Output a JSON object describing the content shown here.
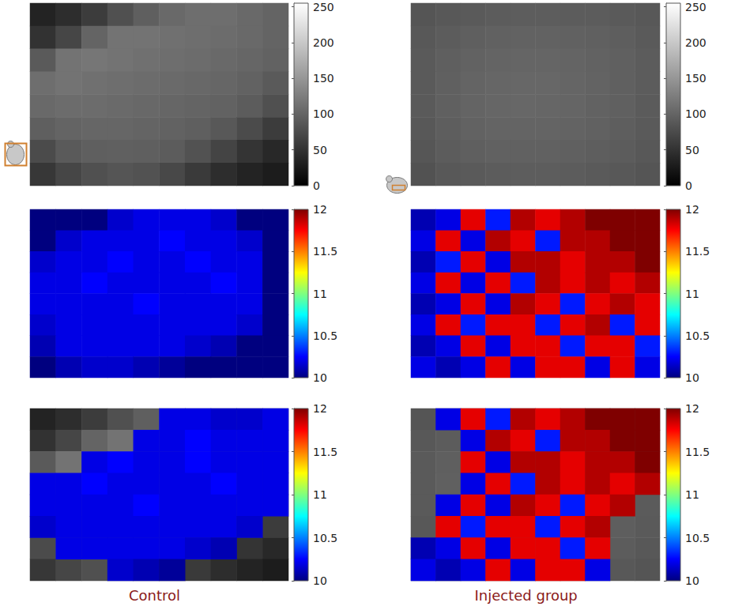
{
  "captions": [
    "Control",
    "Injected group"
  ],
  "chart_data": [
    {
      "type": "heatmap",
      "tick_labels": false,
      "cells": [
        [
          35,
          45,
          60,
          80,
          95,
          105,
          110,
          110,
          105,
          100
        ],
        [
          50,
          70,
          100,
          115,
          115,
          112,
          110,
          108,
          105,
          100
        ],
        [
          90,
          115,
          118,
          115,
          112,
          110,
          108,
          105,
          102,
          98
        ],
        [
          110,
          115,
          112,
          110,
          108,
          106,
          104,
          102,
          98,
          90
        ],
        [
          105,
          108,
          108,
          106,
          104,
          102,
          100,
          98,
          92,
          80
        ],
        [
          95,
          100,
          102,
          102,
          100,
          98,
          95,
          88,
          75,
          60
        ],
        [
          75,
          90,
          95,
          96,
          95,
          92,
          82,
          68,
          52,
          40
        ],
        [
          55,
          70,
          80,
          85,
          82,
          72,
          58,
          45,
          35,
          28
        ]
      ],
      "colorbar": {
        "range": [
          0,
          255
        ],
        "ticks": [
          0,
          50,
          100,
          150,
          200,
          250
        ],
        "colors": [
          "#000000",
          "#ffffff"
        ]
      }
    },
    {
      "type": "heatmap",
      "tick_labels": false,
      "cells": [
        [
          10.0,
          10.0,
          10.0,
          10.15,
          10.2,
          10.2,
          10.2,
          10.15,
          10.0,
          10.0
        ],
        [
          10.0,
          10.15,
          10.2,
          10.2,
          10.2,
          10.25,
          10.2,
          10.2,
          10.15,
          10.0
        ],
        [
          10.15,
          10.2,
          10.2,
          10.25,
          10.2,
          10.2,
          10.25,
          10.2,
          10.2,
          10.0
        ],
        [
          10.2,
          10.2,
          10.25,
          10.2,
          10.2,
          10.2,
          10.2,
          10.25,
          10.2,
          10.0
        ],
        [
          10.2,
          10.2,
          10.2,
          10.2,
          10.25,
          10.2,
          10.2,
          10.2,
          10.2,
          10.0
        ],
        [
          10.15,
          10.2,
          10.2,
          10.2,
          10.2,
          10.2,
          10.2,
          10.2,
          10.15,
          10.0
        ],
        [
          10.1,
          10.2,
          10.2,
          10.2,
          10.2,
          10.2,
          10.15,
          10.1,
          10.0,
          10.0
        ],
        [
          10.0,
          10.1,
          10.15,
          10.15,
          10.1,
          10.05,
          10.0,
          10.0,
          10.0,
          10.0
        ]
      ],
      "colorbar": {
        "range": [
          10,
          12
        ],
        "ticks": [
          10,
          10.5,
          11,
          11.5,
          12
        ],
        "colors": [
          "#00007f",
          "#0000ff",
          "#007fff",
          "#00ffff",
          "#7fff7f",
          "#ffff00",
          "#ff7f00",
          "#ff0000",
          "#7f0000"
        ]
      }
    },
    {
      "type": "heatmap",
      "tick_labels": false,
      "background": {
        "range": [
          0,
          255
        ],
        "colors": [
          "#000000",
          "#ffffff"
        ],
        "cells": [
          [
            35,
            45,
            60,
            80,
            95,
            105,
            110,
            110,
            105,
            100
          ],
          [
            50,
            70,
            100,
            115,
            115,
            112,
            110,
            108,
            105,
            100
          ],
          [
            90,
            115,
            118,
            115,
            112,
            110,
            108,
            105,
            102,
            98
          ],
          [
            110,
            115,
            112,
            110,
            108,
            106,
            104,
            102,
            98,
            90
          ],
          [
            105,
            108,
            108,
            106,
            104,
            102,
            100,
            98,
            92,
            80
          ],
          [
            95,
            100,
            102,
            102,
            100,
            98,
            95,
            88,
            75,
            60
          ],
          [
            75,
            90,
            95,
            96,
            95,
            92,
            82,
            68,
            52,
            40
          ],
          [
            55,
            70,
            80,
            85,
            82,
            72,
            58,
            45,
            35,
            28
          ]
        ]
      },
      "cells": [
        [
          null,
          null,
          null,
          null,
          null,
          10.2,
          10.2,
          10.15,
          10.15,
          10.2
        ],
        [
          null,
          null,
          null,
          null,
          10.2,
          10.2,
          10.25,
          10.2,
          10.2,
          10.2
        ],
        [
          null,
          null,
          10.2,
          10.25,
          10.2,
          10.2,
          10.25,
          10.2,
          10.2,
          10.2
        ],
        [
          10.2,
          10.2,
          10.25,
          10.2,
          10.2,
          10.2,
          10.2,
          10.25,
          10.2,
          10.2
        ],
        [
          10.2,
          10.2,
          10.2,
          10.2,
          10.25,
          10.2,
          10.2,
          10.2,
          10.2,
          10.2
        ],
        [
          10.15,
          10.2,
          10.2,
          10.2,
          10.2,
          10.2,
          10.2,
          10.2,
          10.15,
          null
        ],
        [
          null,
          10.2,
          10.2,
          10.2,
          10.2,
          10.2,
          10.15,
          10.1,
          null,
          null
        ],
        [
          null,
          null,
          null,
          10.15,
          10.1,
          10.05,
          null,
          null,
          null,
          null
        ]
      ],
      "colorbar": {
        "range": [
          10,
          12
        ],
        "ticks": [
          10,
          10.5,
          11,
          11.5,
          12
        ],
        "colors": [
          "#00007f",
          "#0000ff",
          "#007fff",
          "#00ffff",
          "#7fff7f",
          "#ffff00",
          "#ff7f00",
          "#ff0000",
          "#7f0000"
        ]
      }
    },
    {
      "type": "heatmap",
      "tick_labels": false,
      "cells": [
        [
          85,
          88,
          90,
          92,
          93,
          93,
          92,
          92,
          90,
          88
        ],
        [
          88,
          92,
          95,
          97,
          98,
          98,
          97,
          96,
          94,
          90
        ],
        [
          90,
          95,
          98,
          100,
          101,
          101,
          100,
          98,
          96,
          92
        ],
        [
          90,
          96,
          100,
          102,
          103,
          103,
          101,
          99,
          96,
          92
        ],
        [
          90,
          96,
          100,
          102,
          103,
          102,
          101,
          98,
          96,
          91
        ],
        [
          88,
          94,
          98,
          100,
          100,
          100,
          99,
          97,
          94,
          90
        ],
        [
          86,
          92,
          95,
          97,
          97,
          97,
          96,
          94,
          92,
          88
        ],
        [
          82,
          88,
          90,
          92,
          93,
          93,
          92,
          90,
          88,
          85
        ]
      ],
      "colorbar": {
        "range": [
          0,
          255
        ],
        "ticks": [
          0,
          50,
          100,
          150,
          200,
          250
        ],
        "colors": [
          "#000000",
          "#ffffff"
        ]
      }
    },
    {
      "type": "heatmap",
      "tick_labels": false,
      "cells": [
        [
          10.1,
          10.2,
          11.8,
          10.3,
          11.9,
          11.8,
          11.9,
          12.0,
          12.0,
          12.0
        ],
        [
          10.2,
          11.8,
          10.2,
          11.9,
          11.8,
          10.3,
          11.9,
          11.9,
          12.0,
          12.0
        ],
        [
          10.1,
          10.3,
          11.8,
          10.2,
          11.9,
          11.9,
          11.8,
          11.9,
          11.9,
          12.0
        ],
        [
          10.2,
          11.8,
          10.2,
          11.8,
          10.3,
          11.9,
          11.8,
          11.9,
          11.8,
          11.9
        ],
        [
          10.1,
          10.2,
          11.8,
          10.2,
          11.9,
          11.8,
          10.3,
          11.8,
          11.9,
          11.8
        ],
        [
          10.2,
          11.8,
          10.3,
          11.8,
          11.8,
          10.3,
          11.8,
          11.9,
          10.3,
          11.8
        ],
        [
          10.1,
          10.2,
          11.8,
          10.2,
          11.8,
          11.8,
          10.3,
          11.8,
          11.8,
          10.3
        ],
        [
          10.2,
          10.1,
          10.2,
          11.8,
          10.2,
          11.8,
          11.8,
          10.2,
          11.8,
          10.2
        ]
      ],
      "colorbar": {
        "range": [
          10,
          12
        ],
        "ticks": [
          10,
          10.5,
          11,
          11.5,
          12
        ],
        "colors": [
          "#00007f",
          "#0000ff",
          "#007fff",
          "#00ffff",
          "#7fff7f",
          "#ffff00",
          "#ff7f00",
          "#ff0000",
          "#7f0000"
        ]
      }
    },
    {
      "type": "heatmap",
      "tick_labels": false,
      "background": {
        "range": [
          0,
          255
        ],
        "colors": [
          "#000000",
          "#ffffff"
        ],
        "cells": [
          [
            85,
            88,
            90,
            92,
            93,
            93,
            92,
            92,
            90,
            88
          ],
          [
            88,
            92,
            95,
            97,
            98,
            98,
            97,
            96,
            94,
            90
          ],
          [
            90,
            95,
            98,
            100,
            101,
            101,
            100,
            98,
            96,
            92
          ],
          [
            90,
            96,
            100,
            102,
            103,
            103,
            101,
            99,
            96,
            92
          ],
          [
            90,
            96,
            100,
            102,
            103,
            102,
            101,
            98,
            96,
            91
          ],
          [
            88,
            94,
            98,
            100,
            100,
            100,
            99,
            97,
            94,
            90
          ],
          [
            86,
            92,
            95,
            97,
            97,
            97,
            96,
            94,
            92,
            88
          ],
          [
            82,
            88,
            90,
            92,
            93,
            93,
            92,
            90,
            88,
            85
          ]
        ]
      },
      "cells": [
        [
          null,
          10.2,
          11.8,
          10.3,
          11.9,
          11.8,
          11.9,
          12.0,
          12.0,
          12.0
        ],
        [
          null,
          null,
          10.2,
          11.9,
          11.8,
          10.3,
          11.9,
          11.9,
          12.0,
          12.0
        ],
        [
          null,
          null,
          11.8,
          10.2,
          11.9,
          11.9,
          11.8,
          11.9,
          11.9,
          12.0
        ],
        [
          null,
          null,
          10.2,
          11.8,
          10.3,
          11.9,
          11.8,
          11.9,
          11.8,
          11.9
        ],
        [
          null,
          10.2,
          11.8,
          10.2,
          11.9,
          11.8,
          10.3,
          11.8,
          11.9,
          null
        ],
        [
          null,
          11.8,
          10.3,
          11.8,
          11.8,
          10.3,
          11.8,
          11.9,
          null,
          null
        ],
        [
          10.1,
          10.2,
          11.8,
          10.2,
          11.8,
          11.8,
          10.3,
          11.8,
          null,
          null
        ],
        [
          10.2,
          10.1,
          10.2,
          11.8,
          10.2,
          11.8,
          11.8,
          10.2,
          null,
          null
        ]
      ],
      "colorbar": {
        "range": [
          10,
          12
        ],
        "ticks": [
          10,
          10.5,
          11,
          11.5,
          12
        ],
        "colors": [
          "#00007f",
          "#0000ff",
          "#007fff",
          "#00ffff",
          "#7fff7f",
          "#ffff00",
          "#ff7f00",
          "#ff0000",
          "#7f0000"
        ]
      }
    }
  ]
}
